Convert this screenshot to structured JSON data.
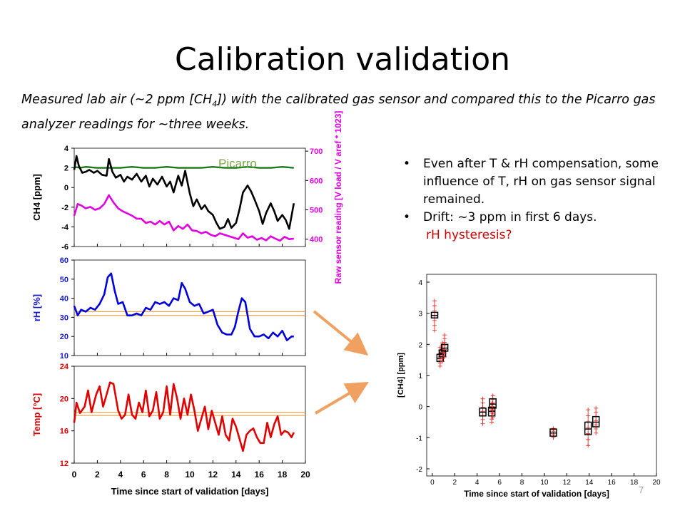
{
  "slide": {
    "title": "Calibration validation",
    "subtitle_before": "Measured lab air (~2 ppm [CH",
    "subtitle_sub": "4",
    "subtitle_after": "]) with the calibrated gas sensor and compared this to the Picarro gas analyzer readings for ~three weeks.",
    "bullets": [
      "Even after T & rH compensation, some influence of T, rH on gas sensor signal remained.",
      "Drift: ~3 ppm in first 6 days."
    ],
    "bullet_note": "rH hysteresis?",
    "page_number": "7"
  },
  "colors": {
    "arrow": "#f0a060",
    "note": "#d00000"
  },
  "chart_data": [
    {
      "type": "line",
      "panel": "methane",
      "annotation": "Picarro",
      "xlim": [
        0,
        20
      ],
      "ylabel": "CH4 [ppm]",
      "ylim": [
        -6,
        4
      ],
      "yticks": [
        "-6",
        "-4",
        "-2",
        "0",
        "2",
        "4"
      ],
      "y2label": "Raw sensor reading [V load / V aref * 1023]",
      "y2lim": [
        375,
        710
      ],
      "y2ticks": [
        "400",
        "500",
        "600",
        "700"
      ],
      "series": [
        {
          "role": "picarro",
          "axis": "left",
          "color": "#1a7a1a",
          "x": [
            0,
            0.5,
            1,
            2,
            3,
            4,
            5,
            6,
            7,
            8,
            9,
            10,
            11,
            12,
            13,
            14,
            15,
            16,
            17,
            18,
            19
          ],
          "y": [
            2.1,
            2.0,
            2.1,
            2.0,
            2.0,
            2.0,
            2.1,
            2.0,
            2.0,
            2.1,
            2.0,
            2.0,
            2.0,
            2.1,
            2.0,
            2.0,
            2.1,
            2.0,
            2.0,
            2.1,
            2.0
          ]
        },
        {
          "role": "sensor",
          "axis": "left",
          "color": "#000000",
          "x": [
            0,
            0.2,
            0.4,
            0.7,
            1,
            1.3,
            1.7,
            2,
            2.4,
            2.8,
            3,
            3.3,
            3.6,
            4,
            4.3,
            4.6,
            5,
            5.4,
            5.8,
            6.2,
            6.5,
            6.8,
            7.2,
            7.6,
            8,
            8.3,
            8.6,
            9,
            9.3,
            9.6,
            10,
            10.3,
            10.6,
            11,
            11.3,
            11.6,
            12,
            12.3,
            12.6,
            13,
            13.3,
            13.6,
            14,
            14.3,
            14.6,
            15,
            15.3,
            15.6,
            16,
            16.3,
            16.6,
            17,
            17.3,
            17.6,
            18,
            18.3,
            18.6,
            19
          ],
          "y": [
            1.8,
            3.2,
            2.2,
            1.5,
            1.6,
            1.8,
            1.5,
            1.7,
            1.3,
            1.2,
            2.9,
            1.6,
            1.0,
            1.3,
            0.6,
            1.1,
            0.8,
            1.4,
            0.6,
            1.2,
            0.1,
            0.9,
            0.3,
            1.1,
            0.1,
            0.6,
            -0.5,
            1.2,
            0.2,
            1.7,
            -0.6,
            -1.9,
            -1.2,
            -2.2,
            -1.8,
            -2.4,
            -2.8,
            -3.6,
            -4.2,
            -4.0,
            -3.2,
            -4.1,
            -3.6,
            -2.2,
            -0.5,
            0.2,
            -0.4,
            -1.2,
            -2.4,
            -3.7,
            -2.6,
            -1.6,
            -2.4,
            -3.4,
            -2.8,
            -3.3,
            -4.2,
            -1.6
          ]
        },
        {
          "role": "raw",
          "axis": "right",
          "color": "#e000e0",
          "x": [
            0,
            0.3,
            0.6,
            1,
            1.4,
            1.8,
            2.2,
            2.6,
            3,
            3.4,
            3.8,
            4.2,
            4.6,
            5,
            5.4,
            5.8,
            6.2,
            6.6,
            7,
            7.4,
            7.8,
            8.2,
            8.6,
            9,
            9.4,
            9.8,
            10.2,
            10.6,
            11,
            11.4,
            11.8,
            12.2,
            12.6,
            13,
            13.4,
            13.8,
            14.2,
            14.6,
            15,
            15.4,
            15.8,
            16.2,
            16.6,
            17,
            17.4,
            17.8,
            18.2,
            18.6,
            19
          ],
          "y": [
            480,
            520,
            515,
            505,
            510,
            500,
            505,
            520,
            550,
            525,
            505,
            495,
            488,
            480,
            470,
            470,
            455,
            460,
            450,
            462,
            450,
            460,
            430,
            445,
            435,
            450,
            430,
            428,
            420,
            425,
            415,
            410,
            420,
            415,
            410,
            405,
            400,
            420,
            405,
            410,
            398,
            404,
            396,
            410,
            402,
            395,
            408,
            400,
            402
          ]
        }
      ]
    },
    {
      "type": "line",
      "panel": "humidity",
      "xlim": [
        0,
        20
      ],
      "ylabel": "rH [%]",
      "ylim": [
        10,
        60
      ],
      "yticks": [
        "10",
        "20",
        "30",
        "40",
        "50",
        "60"
      ],
      "reference_lines": [
        31,
        33
      ],
      "series": [
        {
          "role": "rH",
          "color": "#0000dd",
          "x": [
            0,
            0.3,
            0.6,
            1,
            1.4,
            1.8,
            2.2,
            2.6,
            2.9,
            3.2,
            3.5,
            3.8,
            4.2,
            4.6,
            5,
            5.4,
            5.8,
            6.2,
            6.6,
            7,
            7.4,
            7.8,
            8.2,
            8.6,
            9,
            9.3,
            9.6,
            10,
            10.4,
            10.8,
            11.2,
            11.6,
            12,
            12.4,
            12.8,
            13.2,
            13.6,
            13.9,
            14.2,
            14.5,
            14.8,
            15.2,
            15.6,
            16,
            16.4,
            16.8,
            17.2,
            17.6,
            18,
            18.4,
            18.8,
            19
          ],
          "y": [
            36,
            31,
            34,
            33,
            35,
            34,
            37,
            42,
            51,
            53,
            44,
            37,
            38,
            31,
            31,
            32,
            31,
            35,
            34,
            38,
            37,
            38,
            36,
            40,
            39,
            48,
            45,
            38,
            36,
            37,
            32,
            33,
            34,
            26,
            22,
            21,
            21,
            25,
            33,
            40,
            38,
            24,
            20,
            20,
            21,
            19,
            22,
            20,
            23,
            18,
            20,
            20
          ]
        }
      ]
    },
    {
      "type": "line",
      "panel": "temperature",
      "xlabel": "Time since start of validation [days]",
      "xlim": [
        0,
        20
      ],
      "xticks": [
        "0",
        "2",
        "4",
        "6",
        "8",
        "10",
        "12",
        "14",
        "16",
        "18",
        "20"
      ],
      "ylabel": "Temp [°C]",
      "ylim": [
        12,
        24
      ],
      "yticks": [
        "12",
        "16",
        "20",
        "24"
      ],
      "reference_lines": [
        17.9,
        18.3
      ],
      "series": [
        {
          "role": "temp",
          "color": "#e00000",
          "x": [
            0,
            0.2,
            0.5,
            0.9,
            1.2,
            1.5,
            1.9,
            2.2,
            2.5,
            2.8,
            3.1,
            3.4,
            3.8,
            4.1,
            4.4,
            4.7,
            5,
            5.3,
            5.6,
            5.9,
            6.2,
            6.5,
            6.8,
            7.1,
            7.4,
            7.7,
            8,
            8.3,
            8.6,
            8.9,
            9.2,
            9.5,
            9.8,
            10.1,
            10.4,
            10.7,
            11,
            11.3,
            11.6,
            11.9,
            12.2,
            12.5,
            12.8,
            13.1,
            13.4,
            13.7,
            14,
            14.3,
            14.6,
            14.9,
            15.2,
            15.5,
            15.8,
            16.1,
            16.4,
            16.7,
            17,
            17.3,
            17.6,
            17.9,
            18.2,
            18.5,
            18.8,
            19
          ],
          "y": [
            17,
            19.5,
            18.2,
            19,
            21,
            18.3,
            20.5,
            21.5,
            19,
            20.5,
            22,
            21.8,
            18.5,
            17.5,
            18,
            20.5,
            18,
            17.5,
            19.5,
            18.3,
            21,
            17.8,
            18.5,
            20.8,
            17.5,
            18.3,
            21.5,
            18,
            21.8,
            20,
            17.5,
            20,
            18,
            20.5,
            18.5,
            16,
            17.5,
            19,
            16.2,
            18.5,
            17,
            15.5,
            17.8,
            15.5,
            14.8,
            17.5,
            16.5,
            15,
            13.5,
            15.5,
            16,
            16.3,
            15.2,
            14.5,
            14.5,
            17,
            15.2,
            16.8,
            17.8,
            15.5,
            16,
            15.8,
            15.2,
            15.8
          ]
        }
      ]
    },
    {
      "type": "box",
      "panel": "ch4-box",
      "xlabel": "Time since start of validation [days]",
      "ylabel": "[CH4] [ppm]",
      "xlim": [
        -0.5,
        20
      ],
      "ylim": [
        -2,
        4
      ],
      "xticks": [
        "0",
        "2",
        "4",
        "6",
        "8",
        "10",
        "12",
        "14",
        "16",
        "18",
        "20"
      ],
      "yticks": [
        "-2",
        "-1",
        "0",
        "1",
        "2",
        "3",
        "4"
      ],
      "boxes": [
        {
          "x": 0.2,
          "median": 2.93,
          "q1": 2.85,
          "q3": 3.03,
          "min": 2.45,
          "max": 3.4
        },
        {
          "x": 0.7,
          "median": 1.55,
          "q1": 1.45,
          "q3": 1.68,
          "min": 1.3,
          "max": 1.9
        },
        {
          "x": 0.9,
          "median": 1.72,
          "q1": 1.6,
          "q3": 1.82,
          "min": 1.45,
          "max": 2.05
        },
        {
          "x": 1.1,
          "median": 1.88,
          "q1": 1.78,
          "q3": 2.0,
          "min": 1.6,
          "max": 2.3
        },
        {
          "x": 4.5,
          "median": -0.18,
          "q1": -0.3,
          "q3": -0.05,
          "min": -0.55,
          "max": 0.25
        },
        {
          "x": 5.3,
          "median": -0.15,
          "q1": -0.3,
          "q3": -0.02,
          "min": -0.5,
          "max": 0.1
        },
        {
          "x": 5.4,
          "median": 0.08,
          "q1": -0.05,
          "q3": 0.25,
          "min": -0.35,
          "max": 0.35
        },
        {
          "x": 10.8,
          "median": -0.85,
          "q1": -0.95,
          "q3": -0.72,
          "min": -1.0,
          "max": -0.7
        },
        {
          "x": 13.9,
          "median": -0.72,
          "q1": -0.9,
          "q3": -0.5,
          "min": -1.25,
          "max": -0.1
        },
        {
          "x": 14.6,
          "median": -0.5,
          "q1": -0.65,
          "q3": -0.32,
          "min": -0.85,
          "max": -0.05
        }
      ]
    }
  ]
}
